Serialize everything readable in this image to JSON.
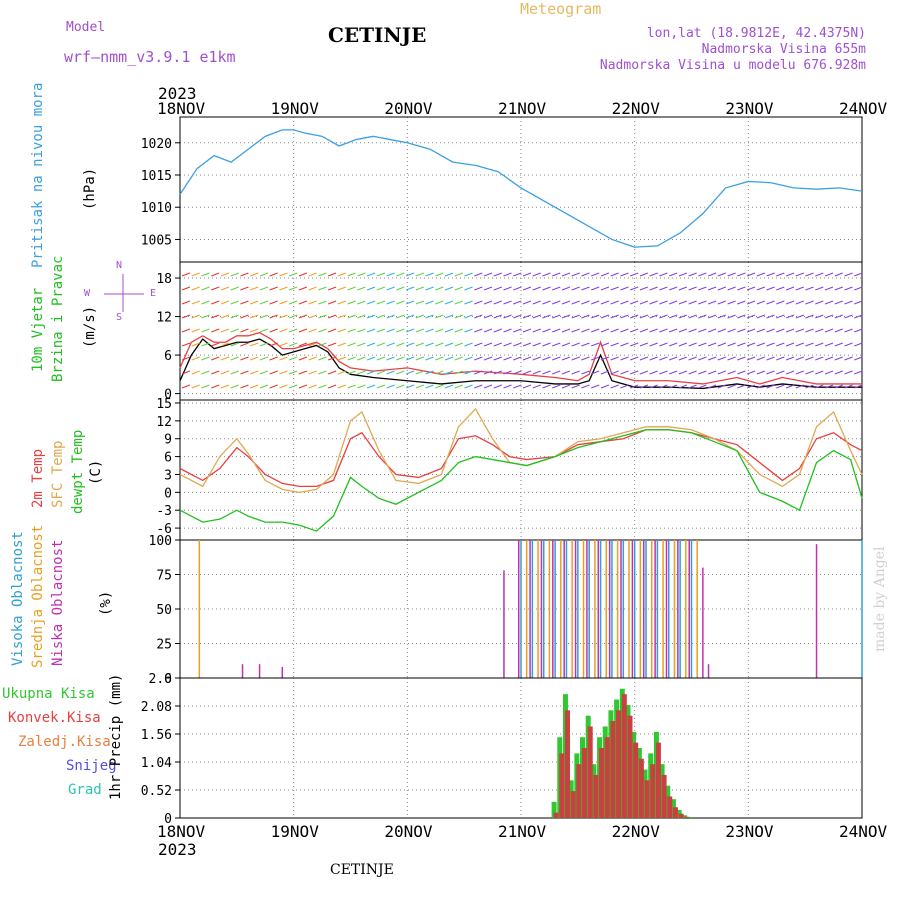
{
  "header": {
    "model_label": "Model",
    "model_name": "wrf–nmm_v3.9.1  e1km",
    "title": "CETINJE",
    "meteogram": "Meteogram",
    "lonlat": "lon,lat (18.9812E, 42.4375N)",
    "altitude": "Nadmorska Visina 655m",
    "model_altitude": "Nadmorska Visina u modelu 676.928m",
    "footer": "CETINJE",
    "credit": "made by Angel"
  },
  "time_axis": {
    "year": "2023",
    "labels": [
      "18NOV",
      "19NOV",
      "20NOV",
      "21NOV",
      "22NOV",
      "23NOV",
      "24NOV"
    ]
  },
  "panel_labels": {
    "pressure": [
      "Pritisak na nivou mora",
      "(hPa)"
    ],
    "wind": [
      "10m Vjetar",
      "Brzina i Pravac",
      "(m/s)"
    ],
    "compass": [
      "N",
      "W",
      "E",
      "S"
    ],
    "temp": [
      "2m Temp",
      "SFC Temp",
      "dewpt Temp",
      "(C)"
    ],
    "cloud": [
      "Visoka Oblacnost",
      "Srednja Oblacnost",
      "Niska Oblacnost",
      "(%)"
    ],
    "precip": [
      "Ukupna Kisa",
      "Konvek.Kisa",
      "Zaledj.Kisa",
      "Snijeg",
      "Grad",
      "1hr Precip (mm)"
    ]
  },
  "colors": {
    "pressure": "#3aa0e0",
    "temp2m": "#e84040",
    "sfc": "#e0a850",
    "dewpt": "#20c020",
    "cloud_high": "#30a0d0",
    "cloud_mid": "#e8a020",
    "cloud_low": "#c030b0",
    "precip_total": "#30c830",
    "precip_conv": "#c84040",
    "wind_speed": "#000000",
    "wind_gust": "#e84040"
  },
  "chart_data": [
    {
      "type": "line",
      "name": "pressure",
      "ylabel": "(hPa)",
      "yticks": [
        1005,
        1010,
        1015,
        1020
      ],
      "ylim": [
        1001.5,
        1024
      ],
      "x": [
        0,
        0.15,
        0.3,
        0.45,
        0.6,
        0.75,
        0.9,
        1.0,
        1.1,
        1.25,
        1.4,
        1.55,
        1.7,
        1.85,
        2.0,
        2.2,
        2.4,
        2.6,
        2.8,
        3.0,
        3.2,
        3.4,
        3.6,
        3.8,
        4.0,
        4.2,
        4.4,
        4.6,
        4.8,
        5.0,
        5.2,
        5.4,
        5.6,
        5.8,
        6.0
      ],
      "y": [
        1012,
        1016,
        1018,
        1017,
        1019,
        1021,
        1022,
        1022,
        1021.5,
        1021,
        1019.5,
        1020.5,
        1021,
        1020.5,
        1020,
        1019,
        1017,
        1016.5,
        1015.5,
        1013,
        1011,
        1009,
        1007,
        1005,
        1003.8,
        1004,
        1006,
        1009,
        1013,
        1014,
        1013.8,
        1013,
        1012.8,
        1013,
        1012.5
      ],
      "grid": true
    },
    {
      "type": "line",
      "name": "wind",
      "ylabel": "(m/s)",
      "yticks": [
        0,
        6,
        12,
        18
      ],
      "ylim": [
        -1,
        20.5
      ],
      "x": [
        0,
        0.1,
        0.2,
        0.3,
        0.4,
        0.5,
        0.6,
        0.7,
        0.8,
        0.9,
        1.0,
        1.1,
        1.2,
        1.3,
        1.4,
        1.5,
        1.7,
        2.0,
        2.3,
        2.6,
        3.0,
        3.3,
        3.5,
        3.6,
        3.7,
        3.8,
        4.0,
        4.3,
        4.6,
        4.9,
        5.1,
        5.3,
        5.6,
        6.0
      ],
      "series": [
        {
          "name": "speed",
          "values": [
            2,
            6,
            8.5,
            7,
            7.5,
            8,
            8,
            8.5,
            7.5,
            6,
            6.5,
            7,
            7.5,
            6.5,
            4,
            3,
            2.5,
            2,
            1.5,
            2,
            2,
            1.5,
            1.5,
            2,
            6,
            2,
            1,
            1,
            0.8,
            1.5,
            1,
            1.5,
            1,
            1
          ]
        },
        {
          "name": "gust",
          "values": [
            4,
            8,
            9,
            8,
            8,
            9,
            9,
            9.5,
            8.5,
            7,
            7,
            7.5,
            8,
            7,
            5,
            4,
            3.5,
            4,
            3,
            3.5,
            3,
            2.5,
            2,
            3,
            8,
            3,
            2,
            2,
            1.5,
            2.5,
            1.5,
            2.5,
            1.5,
            1.5
          ]
        }
      ],
      "grid": true
    },
    {
      "type": "line",
      "name": "temperature",
      "ylabel": "(C)",
      "yticks": [
        -6,
        -3,
        0,
        3,
        6,
        9,
        12,
        15
      ],
      "ylim": [
        -8,
        15.5
      ],
      "x": [
        0,
        0.2,
        0.35,
        0.5,
        0.6,
        0.75,
        0.9,
        1.05,
        1.2,
        1.35,
        1.5,
        1.6,
        1.75,
        1.9,
        2.1,
        2.3,
        2.45,
        2.6,
        2.75,
        2.9,
        3.05,
        3.3,
        3.5,
        3.7,
        3.9,
        4.1,
        4.3,
        4.5,
        4.7,
        4.9,
        5.1,
        5.3,
        5.45,
        5.6,
        5.75,
        5.9,
        6.0
      ],
      "series": [
        {
          "name": "2m Temp",
          "values": [
            4,
            2,
            4,
            7.5,
            6,
            3,
            1.5,
            1,
            1,
            2,
            9,
            10,
            6,
            3,
            2.5,
            4,
            9,
            9.5,
            8,
            6,
            5.5,
            6,
            8,
            8.5,
            9,
            10.5,
            10.5,
            10,
            9,
            8,
            5,
            2,
            4,
            9,
            10,
            8,
            7
          ]
        },
        {
          "name": "SFC Temp",
          "values": [
            3,
            1,
            6,
            9,
            6.5,
            2,
            0.5,
            0,
            0.5,
            3,
            12,
            13.5,
            7,
            2,
            1.5,
            3,
            11,
            14,
            9,
            5,
            4.5,
            6,
            8.5,
            9,
            10,
            11,
            11,
            10.5,
            9,
            7,
            3,
            1,
            3,
            11,
            13.5,
            7,
            3
          ]
        },
        {
          "name": "dewpt Temp",
          "values": [
            -3,
            -5,
            -4.5,
            -3,
            -4,
            -5,
            -5,
            -5.5,
            -6.5,
            -4,
            2.5,
            1,
            -1,
            -2,
            0,
            2,
            5,
            6,
            5.5,
            5,
            4.5,
            6,
            7.5,
            8.5,
            9.5,
            10.5,
            10.5,
            10,
            8.5,
            7,
            0,
            -1.5,
            -3,
            5,
            7,
            5.5,
            -1
          ]
        }
      ],
      "grid": true
    },
    {
      "type": "bar",
      "name": "cloud",
      "ylabel": "(%)",
      "yticks": [
        0,
        25,
        50,
        75,
        100
      ],
      "ylim": [
        0,
        100
      ],
      "series": [
        {
          "name": "Visoka Oblacnost",
          "x": [
            3.0,
            3.1,
            3.2,
            3.3,
            3.4,
            3.5,
            3.6,
            3.7,
            3.8,
            3.9,
            4.0,
            4.1,
            4.2,
            4.3,
            4.4,
            4.5,
            6.0
          ],
          "values": [
            100,
            100,
            100,
            100,
            100,
            100,
            100,
            100,
            100,
            100,
            100,
            100,
            100,
            100,
            100,
            100,
            100
          ]
        },
        {
          "name": "Srednja Oblacnost",
          "x": [
            0.17,
            3.05,
            3.15,
            3.25,
            3.35,
            3.45,
            3.55,
            3.65,
            3.75,
            3.85,
            3.95,
            4.05,
            4.15,
            4.25,
            4.35,
            4.45,
            4.55
          ],
          "values": [
            100,
            100,
            100,
            100,
            100,
            100,
            100,
            100,
            100,
            100,
            100,
            100,
            100,
            100,
            100,
            100,
            100
          ]
        },
        {
          "name": "Niska Oblacnost",
          "x": [
            0.55,
            0.7,
            0.9,
            2.85,
            2.98,
            3.08,
            3.18,
            3.28,
            3.38,
            3.48,
            3.58,
            3.68,
            3.78,
            3.88,
            3.98,
            4.08,
            4.18,
            4.28,
            4.38,
            4.48,
            4.6,
            4.65,
            5.6
          ],
          "values": [
            10,
            10,
            8,
            78,
            100,
            100,
            100,
            100,
            100,
            100,
            100,
            100,
            100,
            100,
            100,
            100,
            100,
            100,
            100,
            100,
            80,
            10,
            97
          ]
        }
      ],
      "grid": true
    },
    {
      "type": "bar",
      "name": "precip",
      "ylabel": "1hr Precip (mm)",
      "yticks": [
        0,
        0.52,
        1.04,
        1.56,
        2.08,
        2.6
      ],
      "ylim": [
        0,
        2.6
      ],
      "x": [
        3.3,
        3.35,
        3.4,
        3.45,
        3.5,
        3.55,
        3.6,
        3.65,
        3.7,
        3.75,
        3.8,
        3.85,
        3.9,
        3.95,
        4.0,
        4.05,
        4.1,
        4.15,
        4.2,
        4.25,
        4.3,
        4.35,
        4.4,
        4.45,
        4.5
      ],
      "series": [
        {
          "name": "Ukupna Kisa",
          "values": [
            0.3,
            1.5,
            2.3,
            0.7,
            1.2,
            1.5,
            1.9,
            1.0,
            1.5,
            1.7,
            2.0,
            2.2,
            2.4,
            2.1,
            1.6,
            1.3,
            0.9,
            1.2,
            1.6,
            1.0,
            0.6,
            0.35,
            0.15,
            0.05,
            0.02
          ]
        },
        {
          "name": "Konvek.Kisa",
          "values": [
            0.1,
            1.2,
            2.0,
            0.5,
            1.0,
            1.3,
            1.7,
            0.8,
            1.3,
            1.5,
            1.8,
            2.0,
            2.3,
            1.9,
            1.4,
            1.1,
            0.7,
            1.0,
            1.4,
            0.8,
            0.4,
            0.2,
            0.08,
            0.02,
            0
          ]
        }
      ],
      "grid": true
    }
  ]
}
